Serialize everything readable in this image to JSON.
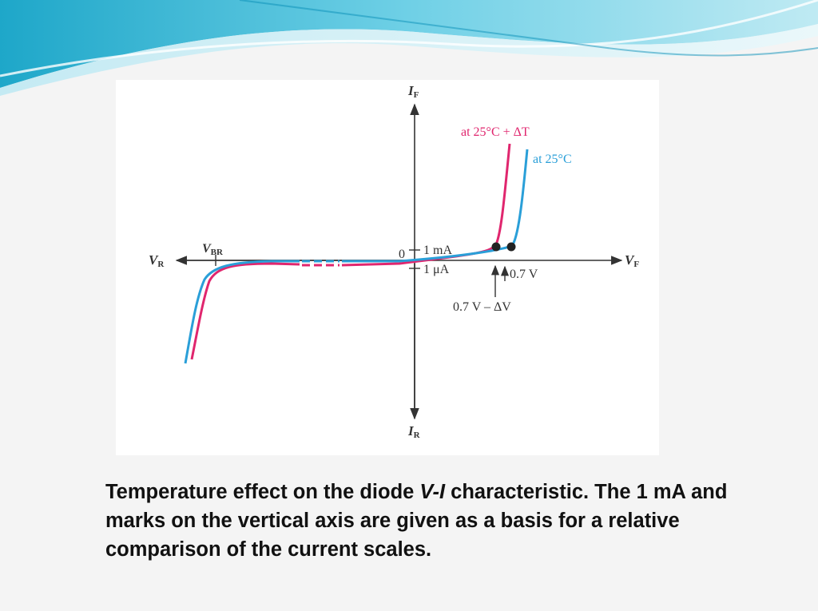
{
  "diagram": {
    "axis_labels": {
      "if_main": "I",
      "if_sub": "F",
      "ir_main": "I",
      "ir_sub": "R",
      "vf_main": "V",
      "vf_sub": "F",
      "vr_main": "V",
      "vr_sub": "R",
      "vbr_main": "V",
      "vbr_sub": "BR"
    },
    "annotations": {
      "origin": "0",
      "one_ma": "1 mA",
      "one_ua": "1 μA",
      "v_07": "0.7 V",
      "v_07_minus": "0.7 V – ΔV",
      "curve_hot": "at 25°C + ΔT",
      "curve_25": "at 25°C"
    },
    "colors": {
      "hot_curve": "#e0266e",
      "room_curve": "#2a9fd8",
      "axes": "#333333"
    }
  },
  "caption": {
    "part1": "Temperature effect on the diode ",
    "italic": "V-I",
    "part2": " characteristic. The 1 mA and marks on the vertical axis are given as a basis for a relative comparison of the current scales."
  }
}
